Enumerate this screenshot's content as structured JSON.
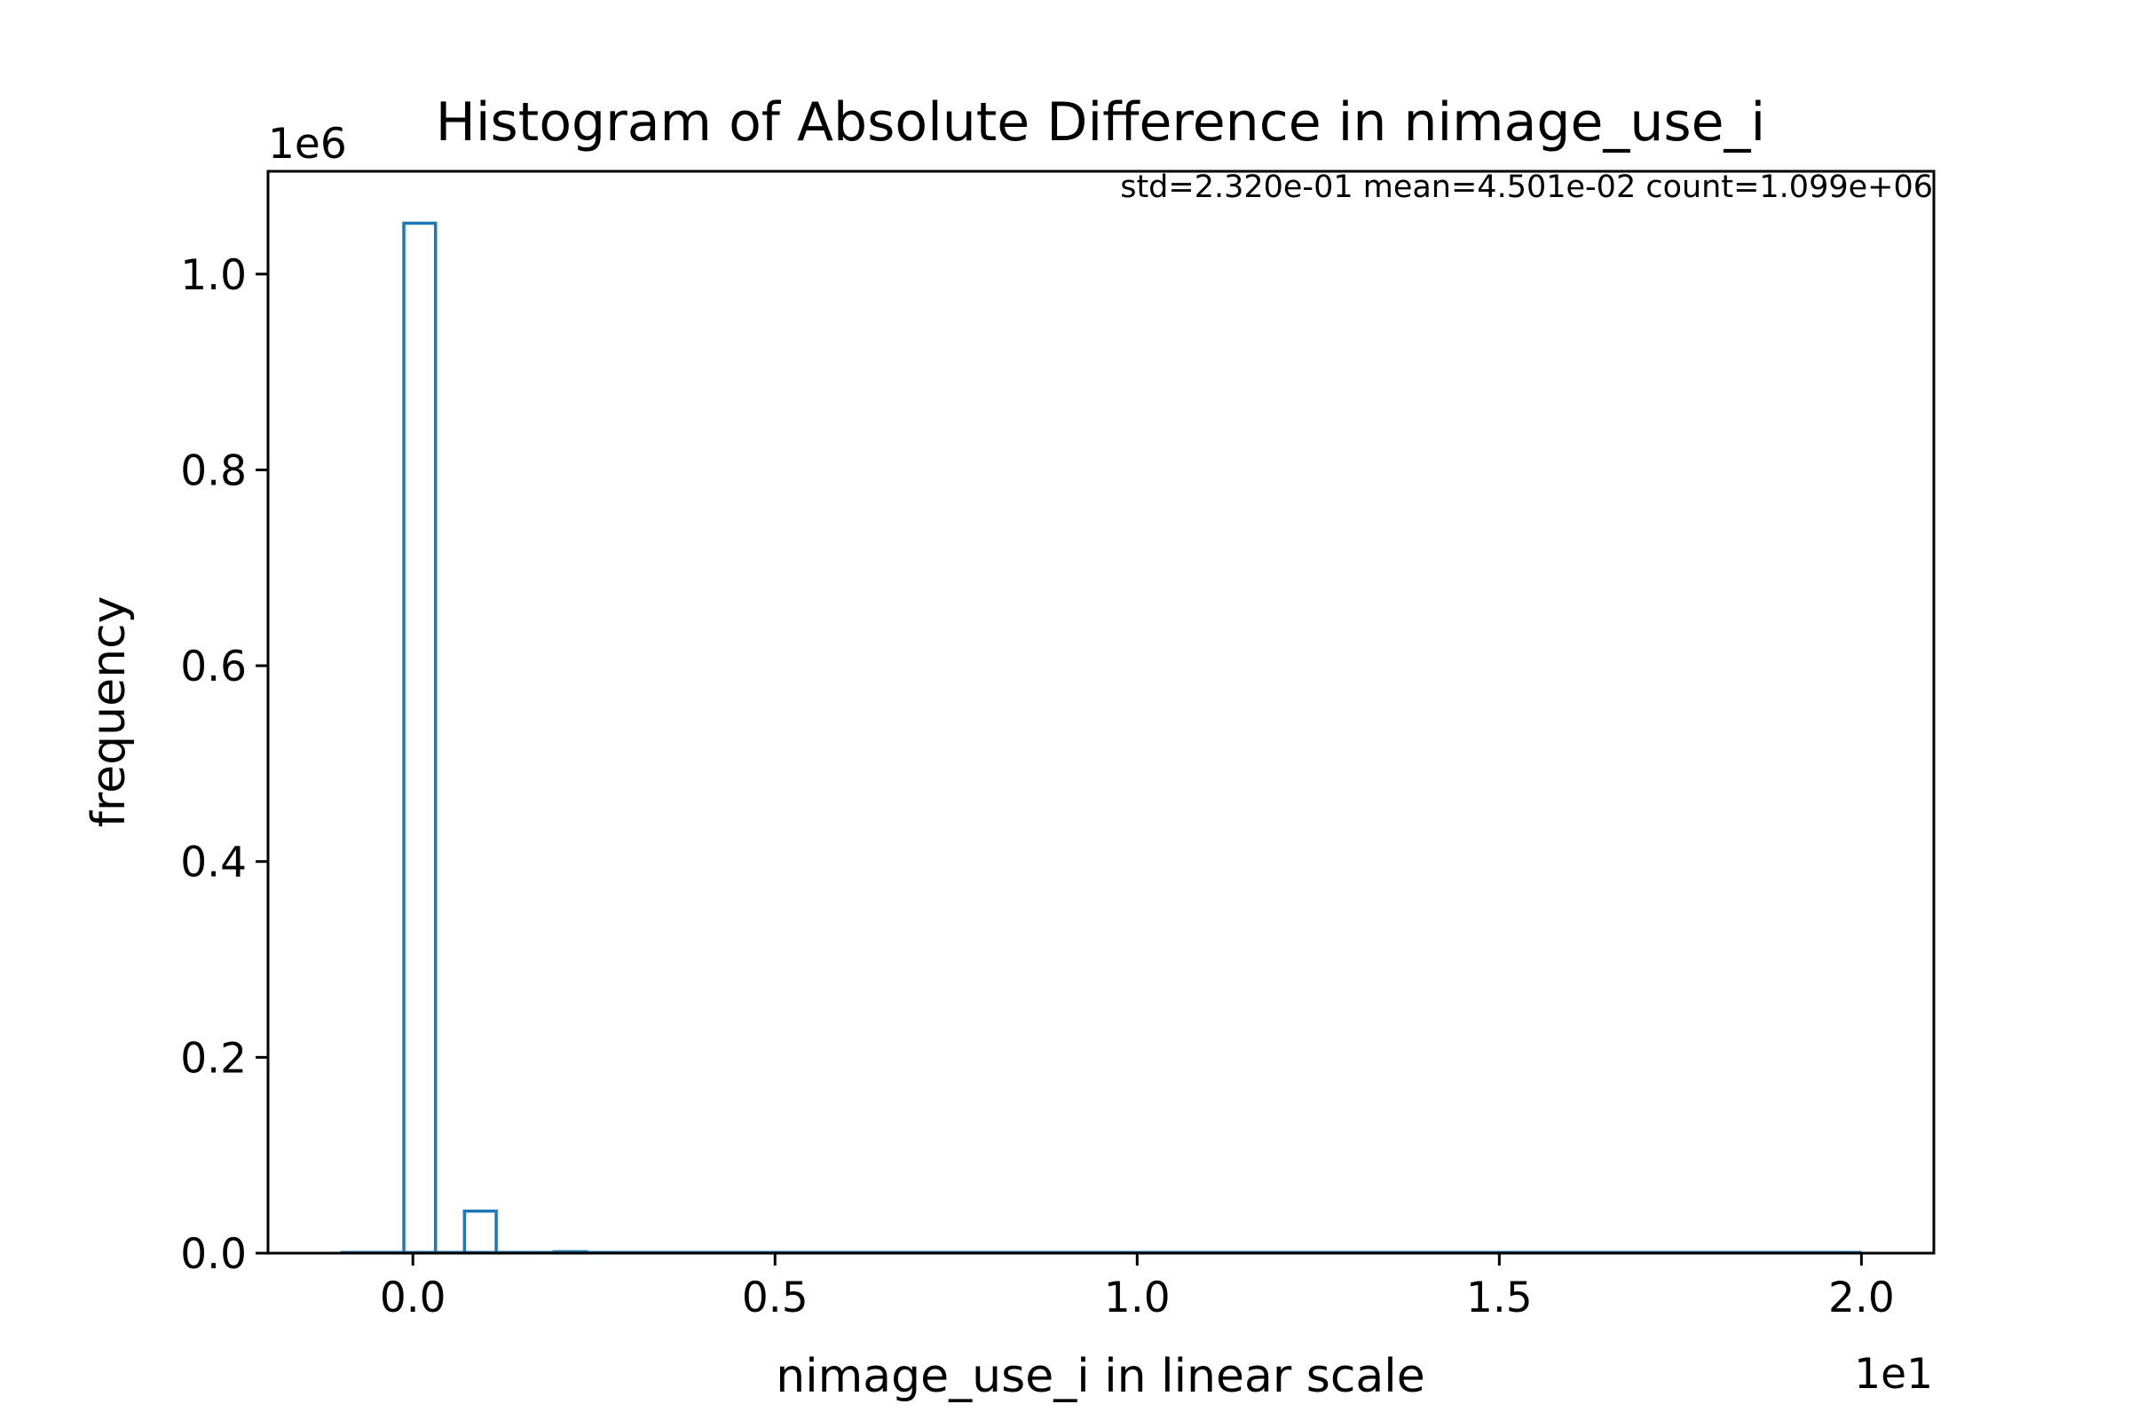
{
  "chart_data": {
    "type": "bar",
    "title": "Histogram of Absolute Difference in nimage_use_i",
    "stats_annotation": "std=2.320e-01 mean=4.501e-02 count=1.099e+06",
    "xlabel": "nimage_use_i in linear scale",
    "ylabel": "frequency",
    "x_offset_label": "1e1",
    "y_offset_label": "1e6",
    "xlim": [
      -0.2,
      2.1
    ],
    "ylim": [
      0,
      1.105
    ],
    "x_ticks": [
      0.0,
      0.5,
      1.0,
      1.5,
      2.0
    ],
    "x_tick_labels": [
      "0.0",
      "0.5",
      "1.0",
      "1.5",
      "2.0"
    ],
    "y_ticks": [
      0.0,
      0.2,
      0.4,
      0.6,
      0.8,
      1.0
    ],
    "y_tick_labels": [
      "0.0",
      "0.2",
      "0.4",
      "0.6",
      "0.8",
      "1.0"
    ],
    "bins": [
      {
        "x0": -0.1,
        "x1": -0.1,
        "value": 0.0
      },
      {
        "x0": -0.0125,
        "x1": 0.03125,
        "value": 1.052
      },
      {
        "x0": 0.07125,
        "x1": 0.115,
        "value": 0.043
      },
      {
        "x0": 0.195,
        "x1": 0.24,
        "value": 0.0015
      }
    ],
    "baseline_range": [
      -0.1,
      2.0
    ],
    "bar_color": "#1f77b4",
    "grid": false
  }
}
